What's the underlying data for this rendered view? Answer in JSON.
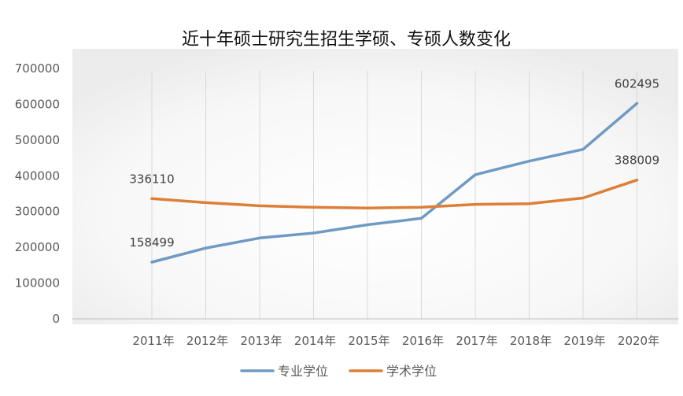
{
  "chart_data": {
    "type": "line",
    "title": "近十年硕士研究生招生学硕、专硕人数变化",
    "categories": [
      "2011年",
      "2012年",
      "2013年",
      "2014年",
      "2015年",
      "2016年",
      "2017年",
      "2018年",
      "2019年",
      "2020年"
    ],
    "ylim": [
      0,
      700000
    ],
    "yticks": [
      "0",
      "100000",
      "200000",
      "300000",
      "400000",
      "500000",
      "600000",
      "700000"
    ],
    "grid": "vertical",
    "legend_position": "bottom",
    "series": [
      {
        "name": "专业学位",
        "color": "#6f9ac3",
        "values": [
          158499,
          198000,
          226000,
          240000,
          263000,
          281000,
          403000,
          441000,
          474000,
          602495
        ]
      },
      {
        "name": "学术学位",
        "color": "#dd7f36",
        "values": [
          336110,
          325000,
          316000,
          312000,
          310000,
          312000,
          320000,
          322000,
          338000,
          388009
        ]
      }
    ],
    "data_labels": [
      {
        "series": 0,
        "index": 0,
        "text": "158499"
      },
      {
        "series": 0,
        "index": 9,
        "text": "602495"
      },
      {
        "series": 1,
        "index": 0,
        "text": "336110"
      },
      {
        "series": 1,
        "index": 9,
        "text": "388009"
      }
    ]
  }
}
